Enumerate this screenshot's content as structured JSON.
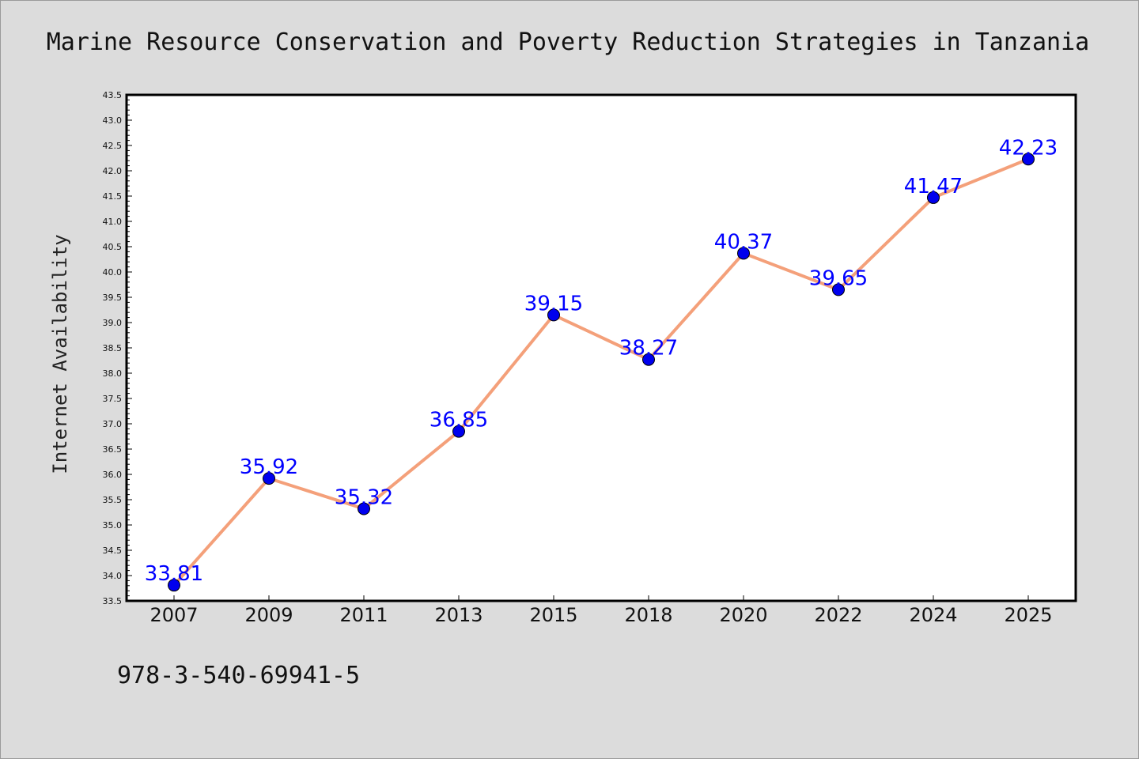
{
  "chart_data": {
    "type": "line",
    "title": "Marine Resource Conservation and Poverty Reduction Strategies in Tanzania",
    "xlabel": "",
    "ylabel": "Internet Availability",
    "categories": [
      "2007",
      "2009",
      "2011",
      "2013",
      "2015",
      "2018",
      "2020",
      "2022",
      "2024",
      "2025"
    ],
    "series": [
      {
        "values": [
          33.81,
          35.92,
          35.32,
          36.85,
          39.15,
          38.27,
          40.37,
          39.65,
          41.47,
          42.23
        ],
        "data_labels": [
          "33.81",
          "35.92",
          "35.32",
          "36.85",
          "39.15",
          "38.27",
          "40.37",
          "39.65",
          "41.47",
          "42.23"
        ],
        "line_color": "#f4a07a",
        "marker_color": "#0000ee"
      }
    ],
    "ylim": [
      33.5,
      43.5
    ],
    "yticks": [
      "33.5",
      "34.0",
      "34.5",
      "35.0",
      "35.5",
      "36.0",
      "36.5",
      "37.0",
      "37.5",
      "38.0",
      "38.5",
      "39.0",
      "39.5",
      "40.0",
      "40.5",
      "41.0",
      "41.5",
      "42.0",
      "42.5",
      "43.0",
      "43.5"
    ],
    "grid": false,
    "legend": "none",
    "annotation": "978-3-540-69941-5",
    "background_color": "#dcdcdc",
    "plot_background_color": "#ffffff",
    "label_color": "#0000ff"
  }
}
